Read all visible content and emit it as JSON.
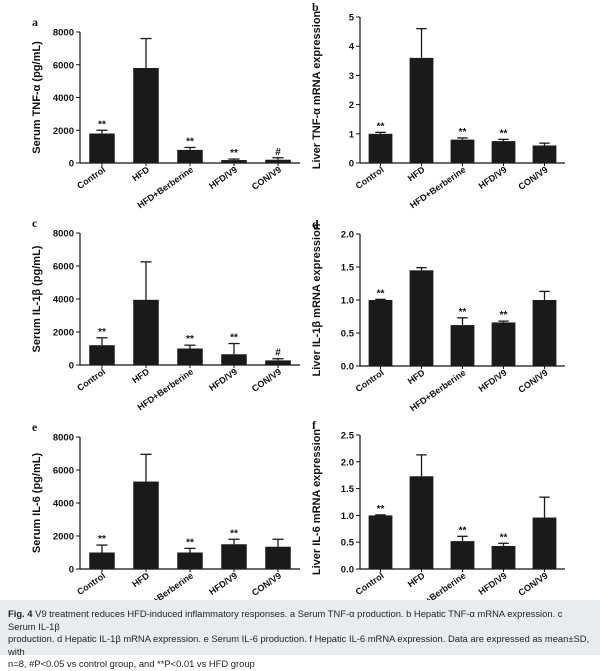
{
  "chart_data": [
    {
      "type": "bar",
      "panel": "a",
      "categories": [
        "Control",
        "HFD",
        "HFD+Berberine",
        "HFD/V9",
        "CON/V9"
      ],
      "values": [
        1800,
        5800,
        800,
        180,
        200
      ],
      "errors": [
        200,
        1800,
        150,
        60,
        120
      ],
      "significance": [
        "**",
        "",
        "**",
        "**",
        "#"
      ],
      "ylabel": "Serum TNF-α  (pg/mL)",
      "ylim": [
        0,
        8000
      ],
      "yticks": [
        "0",
        "2000",
        "4000",
        "6000",
        "8000"
      ],
      "tick_values": [
        0,
        2000,
        4000,
        6000,
        8000
      ]
    },
    {
      "type": "bar",
      "panel": "b",
      "categories": [
        "Control",
        "HFD",
        "HFD+Berberine",
        "HFD/V9",
        "CON/V9"
      ],
      "values": [
        1.0,
        3.6,
        0.8,
        0.75,
        0.6
      ],
      "errors": [
        0.05,
        1.0,
        0.06,
        0.06,
        0.08
      ],
      "significance": [
        "**",
        "",
        "**",
        "**",
        ""
      ],
      "ylabel": "Liver TNF-α mRNA expression",
      "ylim": [
        0,
        5
      ],
      "yticks": [
        "0",
        "1",
        "2",
        "3",
        "4",
        "5"
      ],
      "tick_values": [
        0,
        1,
        2,
        3,
        4,
        5
      ]
    },
    {
      "type": "bar",
      "panel": "c",
      "categories": [
        "Control",
        "HFD",
        "HFD+Berberine",
        "HFD/V9",
        "CON/V9"
      ],
      "values": [
        1200,
        3950,
        1000,
        650,
        280
      ],
      "errors": [
        450,
        2300,
        200,
        650,
        100
      ],
      "significance": [
        "**",
        "",
        "**",
        "**",
        "#"
      ],
      "ylabel": "Serum IL-1β  (pg/mL)",
      "ylim": [
        0,
        8000
      ],
      "yticks": [
        "0",
        "2000",
        "4000",
        "6000",
        "8000"
      ],
      "tick_values": [
        0,
        2000,
        4000,
        6000,
        8000
      ]
    },
    {
      "type": "bar",
      "panel": "d",
      "categories": [
        "Control",
        "HFD",
        "HFD+Berberine",
        "HFD/V9",
        "CON/V9"
      ],
      "values": [
        1.0,
        1.45,
        0.62,
        0.66,
        1.0
      ],
      "errors": [
        0.01,
        0.04,
        0.11,
        0.02,
        0.13
      ],
      "significance": [
        "**",
        "",
        "**",
        "**",
        ""
      ],
      "ylabel": "Liver IL-1β  mRNA expression",
      "ylim": [
        0,
        2.0
      ],
      "yticks": [
        "0.0",
        "0.5",
        "1.0",
        "1.5",
        "2.0"
      ],
      "tick_values": [
        0,
        0.5,
        1.0,
        1.5,
        2.0
      ]
    },
    {
      "type": "bar",
      "panel": "e",
      "categories": [
        "Control",
        "HFD",
        "HFD+Berberine",
        "HFD/V9",
        "CON/V9"
      ],
      "values": [
        1000,
        5300,
        1000,
        1500,
        1350
      ],
      "errors": [
        450,
        1650,
        250,
        300,
        450
      ],
      "significance": [
        "**",
        "",
        "**",
        "**",
        ""
      ],
      "ylabel": "Serum IL-6 (pg/mL)",
      "ylim": [
        0,
        8000
      ],
      "yticks": [
        "0",
        "2000",
        "4000",
        "6000",
        "8000"
      ],
      "tick_values": [
        0,
        2000,
        4000,
        6000,
        8000
      ]
    },
    {
      "type": "bar",
      "panel": "f",
      "categories": [
        "Control",
        "HFD",
        "HFD+Berberine",
        "HFD/V9",
        "CON/V9"
      ],
      "values": [
        1.0,
        1.73,
        0.52,
        0.43,
        0.96
      ],
      "errors": [
        0.01,
        0.4,
        0.09,
        0.05,
        0.38
      ],
      "significance": [
        "**",
        "",
        "**",
        "**",
        ""
      ],
      "ylabel": "Liver IL-6 mRNA expression",
      "ylim": [
        0,
        2.5
      ],
      "yticks": [
        "0.0",
        "0.5",
        "1.0",
        "1.5",
        "2.0",
        "2.5"
      ],
      "tick_values": [
        0,
        0.5,
        1.0,
        1.5,
        2.0,
        2.5
      ]
    }
  ],
  "caption": {
    "fig_label": "Fig. 4",
    "line1": "V9 treatment reduces HFD-induced inflammatory responses. a Serum TNF-α production. b Hepatic TNF-α mRNA expression. c Serum IL-1β",
    "line2": "production. d Hepatic IL-1β mRNA expression. e Serum IL-6 production. f Hepatic IL-6 mRNA expression. Data are expressed as mean±SD, with",
    "line3": "n=8, #P<0.05 vs control group, and **P<0.01 vs HFD group"
  },
  "colors": {
    "bar": "#1a1a1a",
    "axis": "#111111",
    "caption_bg": "#e9ecef"
  }
}
